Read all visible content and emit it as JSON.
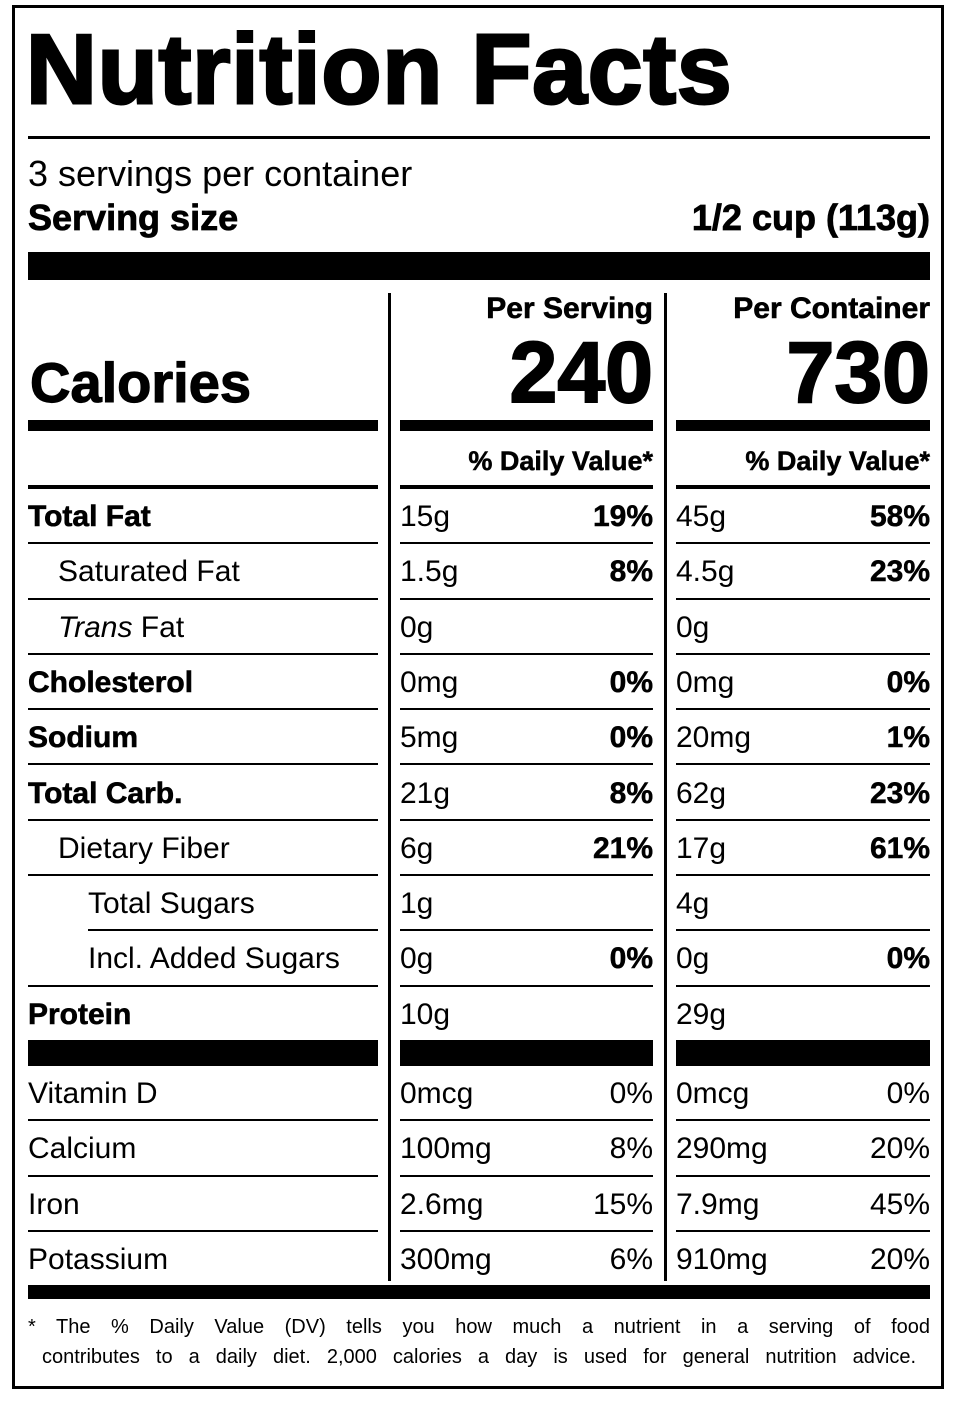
{
  "title": "Nutrition Facts",
  "servings_per_container": "3 servings per container",
  "serving_size_label": "Serving size",
  "serving_size_value": "1/2 cup (113g)",
  "calories_label": "Calories",
  "columns": [
    {
      "header": "Per Serving",
      "calories": "240",
      "dv_header": "% Daily Value*"
    },
    {
      "header": "Per Container",
      "calories": "730",
      "dv_header": "% Daily Value*"
    }
  ],
  "nutrients": [
    {
      "label": "Total Fat",
      "bold": true,
      "indent": 0,
      "serving": {
        "amount": "15g",
        "dv": "19%"
      },
      "container": {
        "amount": "45g",
        "dv": "58%"
      }
    },
    {
      "label": "Saturated Fat",
      "bold": false,
      "indent": 1,
      "serving": {
        "amount": "1.5g",
        "dv": "8%"
      },
      "container": {
        "amount": "4.5g",
        "dv": "23%"
      }
    },
    {
      "label_italic": "Trans",
      "label": " Fat",
      "bold": false,
      "indent": 1,
      "serving": {
        "amount": "0g",
        "dv": ""
      },
      "container": {
        "amount": "0g",
        "dv": ""
      }
    },
    {
      "label": "Cholesterol",
      "bold": true,
      "indent": 0,
      "serving": {
        "amount": "0mg",
        "dv": "0%"
      },
      "container": {
        "amount": "0mg",
        "dv": "0%"
      }
    },
    {
      "label": "Sodium",
      "bold": true,
      "indent": 0,
      "serving": {
        "amount": "5mg",
        "dv": "0%"
      },
      "container": {
        "amount": "20mg",
        "dv": "1%"
      }
    },
    {
      "label": "Total Carb.",
      "bold": true,
      "indent": 0,
      "serving": {
        "amount": "21g",
        "dv": "8%"
      },
      "container": {
        "amount": "62g",
        "dv": "23%"
      }
    },
    {
      "label": "Dietary Fiber",
      "bold": false,
      "indent": 1,
      "serving": {
        "amount": "6g",
        "dv": "21%"
      },
      "container": {
        "amount": "17g",
        "dv": "61%"
      }
    },
    {
      "label": "Total Sugars",
      "bold": false,
      "indent": 1,
      "serving": {
        "amount": "1g",
        "dv": ""
      },
      "container": {
        "amount": "4g",
        "dv": ""
      }
    },
    {
      "label": "Incl. Added Sugars",
      "bold": false,
      "indent": 2,
      "serving": {
        "amount": "0g",
        "dv": "0%"
      },
      "container": {
        "amount": "0g",
        "dv": "0%"
      }
    },
    {
      "label": "Protein",
      "bold": true,
      "indent": 0,
      "serving": {
        "amount": "10g",
        "dv": ""
      },
      "container": {
        "amount": "29g",
        "dv": ""
      }
    }
  ],
  "vitamins": [
    {
      "label": "Vitamin D",
      "serving": {
        "amount": "0mcg",
        "dv": "0%"
      },
      "container": {
        "amount": "0mcg",
        "dv": "0%"
      }
    },
    {
      "label": "Calcium",
      "serving": {
        "amount": "100mg",
        "dv": "8%"
      },
      "container": {
        "amount": "290mg",
        "dv": "20%"
      }
    },
    {
      "label": "Iron",
      "serving": {
        "amount": "2.6mg",
        "dv": "15%"
      },
      "container": {
        "amount": "7.9mg",
        "dv": "45%"
      }
    },
    {
      "label": "Potassium",
      "serving": {
        "amount": "300mg",
        "dv": "6%"
      },
      "container": {
        "amount": "910mg",
        "dv": "20%"
      }
    }
  ],
  "footnote": {
    "line1": "* The % Daily Value (DV) tells you how much a nutrient in a serving of food",
    "line2": "contributes to a daily diet. 2,000 calories a day is used for general nutrition advice."
  }
}
